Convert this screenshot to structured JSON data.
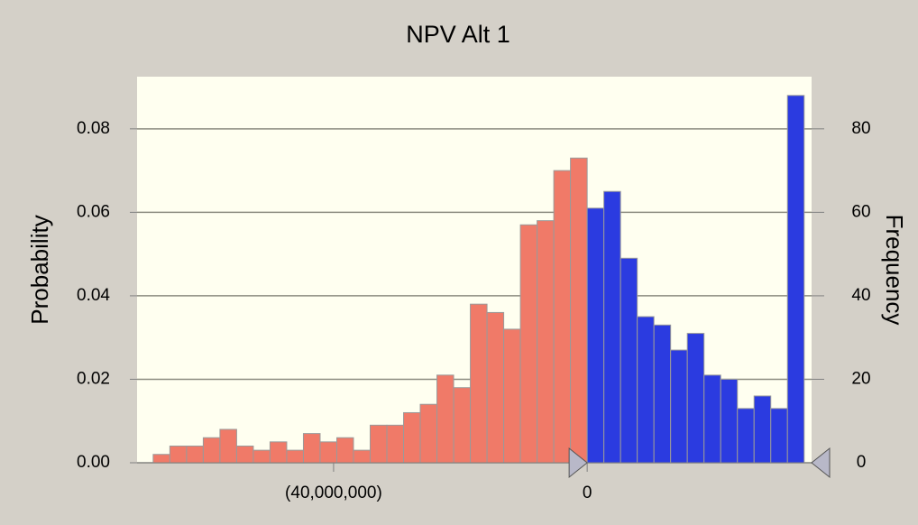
{
  "chart_data": {
    "type": "histogram",
    "title": "NPV Alt 1",
    "y_label": "Probability",
    "y2_label": "Frequency",
    "bins": [
      -68458000,
      -65825000,
      -63192000,
      -60559000,
      -57926000,
      -55293000,
      -52660000,
      -50027000,
      -47394000,
      -44761000,
      -42128000,
      -39495000,
      -36862000,
      -34229000,
      -31596000,
      -28963000,
      -26330000,
      -23697000,
      -21064000,
      -18431000,
      -15798000,
      -13165000,
      -10532000,
      -7899000,
      -5266000,
      -2633000,
      0,
      2633000,
      5266000,
      7899000,
      10532000,
      13165000,
      15798000,
      18431000,
      21064000,
      23697000,
      26330000,
      28963000,
      31596000,
      34229000
    ],
    "values": [
      0.002,
      0.004,
      0.004,
      0.006,
      0.008,
      0.004,
      0.003,
      0.005,
      0.003,
      0.007,
      0.005,
      0.006,
      0.003,
      0.009,
      0.009,
      0.012,
      0.014,
      0.021,
      0.018,
      0.038,
      0.036,
      0.032,
      0.057,
      0.058,
      0.07,
      0.073,
      0.061,
      0.065,
      0.049,
      0.035,
      0.033,
      0.027,
      0.031,
      0.021,
      0.02,
      0.013,
      0.016,
      0.013,
      0.088
    ],
    "certainty_range": [
      0,
      35400000
    ],
    "colors": {
      "outside": "#f07a68",
      "inside": "#2b3be0"
    },
    "xlim": [
      -71000000,
      35400000
    ],
    "xticks": [
      {
        "value": -40000000,
        "label": "(40,000,000)"
      },
      0
    ],
    "ylim": [
      0,
      0.0925
    ],
    "yticks": [
      {
        "value": 0,
        "label": "0.00"
      },
      0.02,
      0.04,
      0.06,
      0.08
    ],
    "y2lim": [
      0,
      92.5
    ],
    "y2ticks": [
      0,
      20,
      40,
      60,
      80
    ],
    "grid": true
  }
}
